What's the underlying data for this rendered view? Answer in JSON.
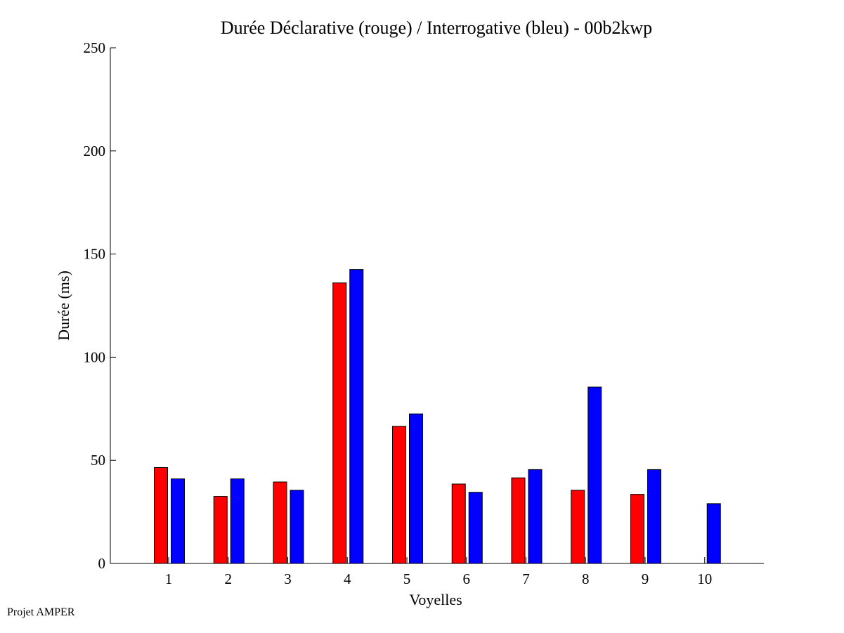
{
  "footer": {
    "note": "Projet AMPER"
  },
  "chart_data": {
    "type": "bar",
    "title": "Durée Déclarative (rouge) / Interrogative (bleu) - 00b2kwp",
    "xlabel": "Voyelles",
    "ylabel": "Durée (ms)",
    "ylim": [
      0,
      250
    ],
    "yticks": [
      0,
      50,
      100,
      150,
      200,
      250
    ],
    "categories": [
      "1",
      "2",
      "3",
      "4",
      "5",
      "6",
      "7",
      "8",
      "9",
      "10"
    ],
    "grid": false,
    "legend": "none",
    "series": [
      {
        "color": "#ff0000",
        "values": [
          46.5,
          32.5,
          39.5,
          136,
          66.5,
          38.5,
          41.5,
          35.5,
          33.5,
          0
        ]
      },
      {
        "color": "#0000ff",
        "values": [
          41,
          41,
          35.5,
          142.5,
          72.5,
          34.5,
          45.5,
          85.5,
          45.5,
          29
        ]
      }
    ]
  }
}
